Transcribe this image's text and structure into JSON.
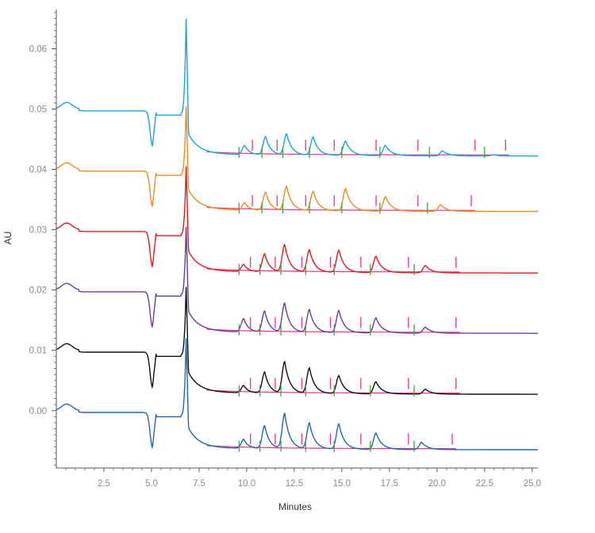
{
  "chart_data": {
    "type": "line",
    "title": "",
    "xlabel": "Minutes",
    "ylabel": "AU",
    "xlim": [
      0.0,
      25.3
    ],
    "ylim": [
      -0.0095,
      0.0665
    ],
    "x_ticks": [
      2.5,
      5.0,
      7.5,
      10.0,
      12.5,
      15.0,
      17.5,
      20.0,
      22.5,
      25.0
    ],
    "x_tick_labels": [
      "2.5",
      "5.0",
      "7.5",
      "10.0",
      "12.5",
      "15.0",
      "17.5",
      "20.0",
      "22.5",
      "25.0"
    ],
    "y_ticks": [
      0.0,
      0.01,
      0.02,
      0.03,
      0.04,
      0.05,
      0.06
    ],
    "y_tick_labels": [
      "0.00",
      "0.01",
      "0.02",
      "0.03",
      "0.04",
      "0.05",
      "0.06"
    ],
    "grid": false,
    "legend": "none",
    "baseline_color": "#e8338a",
    "start_marker_color": "#3aaa35",
    "end_marker_color": "#e8338a",
    "series": [
      {
        "color": "#2266b0",
        "pre_level": 0.0,
        "injection_peak_height": 0.012,
        "tail_level": -0.0065,
        "peaks": [
          {
            "rt": 9.85,
            "height": 0.0015,
            "start": 9.6,
            "end": 10.2
          },
          {
            "rt": 10.95,
            "height": 0.0038,
            "start": 10.7,
            "end": 11.5
          },
          {
            "rt": 12.0,
            "height": 0.0058,
            "start": 11.8,
            "end": 12.9
          },
          {
            "rt": 13.3,
            "height": 0.0043,
            "start": 13.1,
            "end": 14.4
          },
          {
            "rt": 14.85,
            "height": 0.0042,
            "start": 14.6,
            "end": 16.0
          },
          {
            "rt": 16.8,
            "height": 0.0027,
            "start": 16.5,
            "end": 18.5
          },
          {
            "rt": 19.2,
            "height": 0.0012,
            "start": 18.8,
            "end": 20.8
          }
        ]
      },
      {
        "color": "#111111",
        "pre_level": 0.01,
        "injection_peak_height": 0.0205,
        "tail_level": 0.0027,
        "peaks": [
          {
            "rt": 9.85,
            "height": 0.0012,
            "start": 9.6,
            "end": 10.2
          },
          {
            "rt": 10.95,
            "height": 0.0035,
            "start": 10.7,
            "end": 11.5
          },
          {
            "rt": 12.0,
            "height": 0.0052,
            "start": 11.8,
            "end": 12.9
          },
          {
            "rt": 13.3,
            "height": 0.0042,
            "start": 13.1,
            "end": 14.4
          },
          {
            "rt": 14.85,
            "height": 0.003,
            "start": 14.6,
            "end": 16.0
          },
          {
            "rt": 16.8,
            "height": 0.002,
            "start": 16.5,
            "end": 18.5
          },
          {
            "rt": 19.4,
            "height": 0.0008,
            "start": 18.8,
            "end": 21.0
          }
        ]
      },
      {
        "color": "#6a3d9a",
        "pre_level": 0.02,
        "injection_peak_height": 0.0305,
        "tail_level": 0.0128,
        "peaks": [
          {
            "rt": 9.85,
            "height": 0.0022,
            "start": 9.6,
            "end": 10.2
          },
          {
            "rt": 10.95,
            "height": 0.0035,
            "start": 10.7,
            "end": 11.5
          },
          {
            "rt": 12.0,
            "height": 0.0048,
            "start": 11.8,
            "end": 12.9
          },
          {
            "rt": 13.3,
            "height": 0.0038,
            "start": 13.1,
            "end": 14.4
          },
          {
            "rt": 14.85,
            "height": 0.0037,
            "start": 14.6,
            "end": 16.0
          },
          {
            "rt": 16.8,
            "height": 0.0025,
            "start": 16.5,
            "end": 18.5
          },
          {
            "rt": 19.4,
            "height": 0.001,
            "start": 18.8,
            "end": 21.0
          }
        ]
      },
      {
        "color": "#e31a1c",
        "pre_level": 0.03,
        "injection_peak_height": 0.0405,
        "tail_level": 0.0228,
        "peaks": [
          {
            "rt": 9.85,
            "height": 0.0012,
            "start": 9.6,
            "end": 10.2
          },
          {
            "rt": 10.95,
            "height": 0.003,
            "start": 10.7,
            "end": 11.5
          },
          {
            "rt": 12.0,
            "height": 0.0045,
            "start": 11.8,
            "end": 12.9
          },
          {
            "rt": 13.3,
            "height": 0.0037,
            "start": 13.1,
            "end": 14.4
          },
          {
            "rt": 14.85,
            "height": 0.0037,
            "start": 14.6,
            "end": 16.0
          },
          {
            "rt": 16.8,
            "height": 0.0027,
            "start": 16.5,
            "end": 18.5
          },
          {
            "rt": 19.4,
            "height": 0.0012,
            "start": 18.8,
            "end": 21.0
          }
        ]
      },
      {
        "color": "#f08a24",
        "pre_level": 0.04,
        "injection_peak_height": 0.0505,
        "tail_level": 0.033,
        "peaks": [
          {
            "rt": 9.9,
            "height": 0.0012,
            "start": 9.6,
            "end": 10.3
          },
          {
            "rt": 11.0,
            "height": 0.003,
            "start": 10.8,
            "end": 11.6
          },
          {
            "rt": 12.1,
            "height": 0.004,
            "start": 11.9,
            "end": 13.1
          },
          {
            "rt": 13.5,
            "height": 0.0032,
            "start": 13.3,
            "end": 14.6
          },
          {
            "rt": 15.2,
            "height": 0.0037,
            "start": 15.0,
            "end": 16.8
          },
          {
            "rt": 17.3,
            "height": 0.0024,
            "start": 17.0,
            "end": 19.0
          },
          {
            "rt": 20.2,
            "height": 0.0011,
            "start": 19.5,
            "end": 21.8
          }
        ]
      },
      {
        "color": "#1ba3dc",
        "pre_level": 0.05,
        "injection_peak_height": 0.065,
        "tail_level": 0.0422,
        "peaks": [
          {
            "rt": 9.9,
            "height": 0.0015,
            "start": 9.6,
            "end": 10.3
          },
          {
            "rt": 11.0,
            "height": 0.003,
            "start": 10.8,
            "end": 11.6
          },
          {
            "rt": 12.1,
            "height": 0.0035,
            "start": 11.9,
            "end": 13.1
          },
          {
            "rt": 13.5,
            "height": 0.003,
            "start": 13.3,
            "end": 14.6
          },
          {
            "rt": 15.2,
            "height": 0.0024,
            "start": 15.0,
            "end": 16.8
          },
          {
            "rt": 17.3,
            "height": 0.0017,
            "start": 17.0,
            "end": 19.0
          },
          {
            "rt": 20.3,
            "height": 0.0008,
            "start": 19.6,
            "end": 22.0
          },
          {
            "rt": 23.0,
            "height": 0.0002,
            "start": 22.5,
            "end": 23.6
          }
        ]
      }
    ]
  }
}
